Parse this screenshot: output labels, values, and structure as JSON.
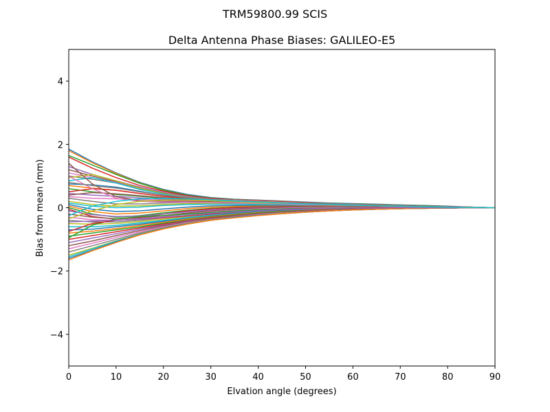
{
  "chart_data": {
    "type": "line",
    "suptitle": "TRM59800.99      SCIS",
    "title": "Delta Antenna Phase Biases: GALILEO-E5",
    "xlabel": "Elvation angle (degrees)",
    "ylabel": "Bias from mean (mm)",
    "xlim": [
      0,
      90
    ],
    "ylim": [
      -5,
      5
    ],
    "xticks": [
      0,
      10,
      20,
      30,
      40,
      50,
      60,
      70,
      80,
      90
    ],
    "yticks": [
      -4,
      -2,
      0,
      2,
      4
    ],
    "ytick_labels": [
      "−4",
      "−2",
      "0",
      "2",
      "4"
    ],
    "grid": false,
    "colors": [
      "#1f77b4",
      "#ff7f0e",
      "#2ca02c",
      "#d62728",
      "#9467bd",
      "#8c564b",
      "#e377c2",
      "#7f7f7f",
      "#bcbd22",
      "#17becf"
    ],
    "x": [
      0,
      5,
      10,
      15,
      20,
      25,
      30,
      35,
      40,
      45,
      50,
      55,
      60,
      65,
      70,
      75,
      80,
      85,
      90
    ],
    "series": [
      {
        "values": [
          1.85,
          1.45,
          1.1,
          0.8,
          0.58,
          0.42,
          0.32,
          0.27,
          0.24,
          0.21,
          0.18,
          0.15,
          0.13,
          0.11,
          0.09,
          0.07,
          0.05,
          0.02,
          0
        ]
      },
      {
        "values": [
          1.8,
          1.42,
          1.08,
          0.78,
          0.56,
          0.4,
          0.3,
          0.26,
          0.23,
          0.2,
          0.17,
          0.14,
          0.12,
          0.1,
          0.08,
          0.06,
          0.04,
          0.02,
          0
        ]
      },
      {
        "values": [
          1.65,
          1.35,
          1.05,
          0.77,
          0.55,
          0.4,
          0.31,
          0.26,
          0.22,
          0.19,
          0.16,
          0.14,
          0.12,
          0.1,
          0.08,
          0.06,
          0.04,
          0.02,
          0
        ]
      },
      {
        "values": [
          1.6,
          1.25,
          0.95,
          0.7,
          0.52,
          0.38,
          0.3,
          0.25,
          0.22,
          0.19,
          0.16,
          0.13,
          0.11,
          0.09,
          0.07,
          0.05,
          0.04,
          0.02,
          0
        ]
      },
      {
        "values": [
          1.3,
          1.05,
          0.85,
          0.65,
          0.48,
          0.36,
          0.28,
          0.24,
          0.21,
          0.18,
          0.15,
          0.13,
          0.11,
          0.09,
          0.07,
          0.05,
          0.03,
          0.01,
          0
        ]
      },
      {
        "values": [
          1.2,
          1.0,
          0.82,
          0.62,
          0.46,
          0.35,
          0.28,
          0.23,
          0.2,
          0.17,
          0.14,
          0.12,
          0.1,
          0.08,
          0.06,
          0.05,
          0.03,
          0.01,
          0
        ]
      },
      {
        "values": [
          1.1,
          0.95,
          0.8,
          0.6,
          0.45,
          0.34,
          0.27,
          0.23,
          0.2,
          0.17,
          0.14,
          0.12,
          0.1,
          0.08,
          0.06,
          0.04,
          0.03,
          0.01,
          0
        ]
      },
      {
        "values": [
          1.0,
          0.9,
          0.78,
          0.6,
          0.44,
          0.33,
          0.26,
          0.22,
          0.19,
          0.16,
          0.14,
          0.12,
          0.1,
          0.08,
          0.06,
          0.04,
          0.03,
          0.01,
          0
        ]
      },
      {
        "values": [
          0.95,
          1.05,
          0.85,
          0.62,
          0.45,
          0.33,
          0.26,
          0.22,
          0.19,
          0.16,
          0.13,
          0.11,
          0.09,
          0.07,
          0.05,
          0.04,
          0.02,
          0.01,
          0
        ]
      },
      {
        "values": [
          0.85,
          0.95,
          0.78,
          0.58,
          0.43,
          0.32,
          0.25,
          0.21,
          0.18,
          0.15,
          0.13,
          0.11,
          0.09,
          0.07,
          0.05,
          0.04,
          0.02,
          0.01,
          0
        ]
      },
      {
        "values": [
          0.75,
          0.72,
          0.65,
          0.52,
          0.4,
          0.31,
          0.25,
          0.21,
          0.18,
          0.15,
          0.13,
          0.11,
          0.09,
          0.07,
          0.05,
          0.04,
          0.02,
          0.01,
          0
        ]
      },
      {
        "values": [
          0.7,
          0.62,
          0.55,
          0.45,
          0.36,
          0.29,
          0.24,
          0.2,
          0.17,
          0.15,
          0.12,
          0.1,
          0.09,
          0.07,
          0.05,
          0.04,
          0.02,
          0.01,
          0
        ]
      },
      {
        "values": [
          0.6,
          0.5,
          0.42,
          0.36,
          0.3,
          0.26,
          0.22,
          0.19,
          0.16,
          0.14,
          0.12,
          0.1,
          0.08,
          0.07,
          0.05,
          0.04,
          0.02,
          0.01,
          0
        ]
      },
      {
        "values": [
          0.5,
          0.6,
          0.55,
          0.45,
          0.36,
          0.29,
          0.24,
          0.2,
          0.17,
          0.15,
          0.12,
          0.1,
          0.08,
          0.07,
          0.05,
          0.03,
          0.02,
          0.01,
          0
        ]
      },
      {
        "values": [
          0.45,
          0.4,
          0.36,
          0.31,
          0.27,
          0.24,
          0.21,
          0.18,
          0.16,
          0.14,
          0.12,
          0.1,
          0.08,
          0.06,
          0.05,
          0.03,
          0.02,
          0.01,
          0
        ]
      },
      {
        "values": [
          0.4,
          0.48,
          0.44,
          0.38,
          0.32,
          0.27,
          0.23,
          0.19,
          0.16,
          0.14,
          0.12,
          0.1,
          0.08,
          0.06,
          0.05,
          0.03,
          0.02,
          0.01,
          0
        ]
      },
      {
        "values": [
          0.35,
          0.3,
          0.28,
          0.26,
          0.24,
          0.22,
          0.2,
          0.17,
          0.15,
          0.13,
          0.11,
          0.09,
          0.08,
          0.06,
          0.05,
          0.03,
          0.02,
          0.01,
          0
        ]
      },
      {
        "values": [
          0.3,
          0.2,
          0.12,
          0.12,
          0.15,
          0.17,
          0.17,
          0.16,
          0.14,
          0.12,
          0.1,
          0.09,
          0.07,
          0.06,
          0.04,
          0.03,
          0.02,
          0.01,
          0
        ]
      },
      {
        "values": [
          0.2,
          0.1,
          0.05,
          0.06,
          0.1,
          0.13,
          0.14,
          0.13,
          0.12,
          0.11,
          0.1,
          0.08,
          0.07,
          0.05,
          0.04,
          0.03,
          0.02,
          0.01,
          0
        ]
      },
      {
        "values": [
          0.15,
          0.05,
          0.0,
          0.02,
          0.07,
          0.1,
          0.11,
          0.11,
          0.1,
          0.09,
          0.08,
          0.07,
          0.06,
          0.05,
          0.04,
          0.03,
          0.02,
          0.01,
          0
        ]
      },
      {
        "values": [
          0.1,
          -0.05,
          -0.12,
          -0.1,
          -0.04,
          0.02,
          0.06,
          0.07,
          0.07,
          0.07,
          0.06,
          0.06,
          0.05,
          0.04,
          0.03,
          0.02,
          0.01,
          0.01,
          0
        ]
      },
      {
        "values": [
          0.05,
          -0.12,
          -0.2,
          -0.17,
          -0.1,
          -0.03,
          0.02,
          0.04,
          0.05,
          0.05,
          0.05,
          0.05,
          0.04,
          0.04,
          0.03,
          0.02,
          0.01,
          0.0,
          0
        ]
      },
      {
        "values": [
          0.0,
          -0.2,
          -0.3,
          -0.25,
          -0.16,
          -0.08,
          -0.02,
          0.01,
          0.03,
          0.04,
          0.04,
          0.04,
          0.04,
          0.03,
          0.03,
          0.02,
          0.01,
          0.0,
          0
        ]
      },
      {
        "values": [
          -0.05,
          -0.28,
          -0.36,
          -0.3,
          -0.2,
          -0.1,
          -0.04,
          0.0,
          0.02,
          0.03,
          0.03,
          0.03,
          0.03,
          0.03,
          0.02,
          0.02,
          0.01,
          0.0,
          0
        ]
      },
      {
        "values": [
          -0.1,
          -0.22,
          -0.28,
          -0.26,
          -0.2,
          -0.13,
          -0.07,
          -0.03,
          0.0,
          0.01,
          0.02,
          0.02,
          0.02,
          0.02,
          0.02,
          0.01,
          0.01,
          0.0,
          0
        ]
      },
      {
        "values": [
          -0.2,
          -0.3,
          -0.35,
          -0.32,
          -0.25,
          -0.17,
          -0.1,
          -0.05,
          -0.02,
          0.0,
          0.01,
          0.02,
          0.02,
          0.02,
          0.01,
          0.01,
          0.0,
          0.0,
          0
        ]
      },
      {
        "values": [
          -0.3,
          -0.38,
          -0.4,
          -0.35,
          -0.28,
          -0.2,
          -0.13,
          -0.08,
          -0.04,
          -0.02,
          0.0,
          0.01,
          0.01,
          0.01,
          0.01,
          0.01,
          0.0,
          0.0,
          0
        ]
      },
      {
        "values": [
          -0.4,
          -0.45,
          -0.45,
          -0.4,
          -0.32,
          -0.24,
          -0.17,
          -0.11,
          -0.07,
          -0.04,
          -0.02,
          -0.01,
          0.0,
          0.0,
          0.0,
          0.0,
          0.0,
          0.0,
          0
        ]
      },
      {
        "values": [
          -0.5,
          -0.52,
          -0.5,
          -0.44,
          -0.36,
          -0.28,
          -0.2,
          -0.14,
          -0.09,
          -0.06,
          -0.04,
          -0.02,
          -0.01,
          -0.01,
          0.0,
          0.0,
          0.0,
          0.0,
          0
        ]
      },
      {
        "values": [
          -0.6,
          -0.6,
          -0.56,
          -0.48,
          -0.4,
          -0.31,
          -0.23,
          -0.17,
          -0.12,
          -0.08,
          -0.05,
          -0.03,
          -0.02,
          -0.01,
          -0.01,
          0.0,
          0.0,
          0.0,
          0
        ]
      },
      {
        "values": [
          -0.7,
          -0.68,
          -0.6,
          -0.52,
          -0.43,
          -0.34,
          -0.26,
          -0.19,
          -0.13,
          -0.09,
          -0.06,
          -0.04,
          -0.03,
          -0.02,
          -0.01,
          -0.01,
          0.0,
          0.0,
          0
        ]
      },
      {
        "values": [
          -0.8,
          -0.74,
          -0.66,
          -0.56,
          -0.46,
          -0.36,
          -0.28,
          -0.21,
          -0.15,
          -0.11,
          -0.08,
          -0.05,
          -0.03,
          -0.02,
          -0.01,
          -0.01,
          0.0,
          0.0,
          0
        ]
      },
      {
        "values": [
          -0.9,
          -0.8,
          -0.7,
          -0.6,
          -0.49,
          -0.39,
          -0.3,
          -0.23,
          -0.17,
          -0.12,
          -0.09,
          -0.06,
          -0.04,
          -0.03,
          -0.02,
          -0.01,
          -0.01,
          0.0,
          0
        ]
      },
      {
        "values": [
          -1.0,
          -0.88,
          -0.76,
          -0.64,
          -0.52,
          -0.41,
          -0.32,
          -0.25,
          -0.19,
          -0.14,
          -0.1,
          -0.07,
          -0.05,
          -0.03,
          -0.02,
          -0.01,
          -0.01,
          0.0,
          0
        ]
      },
      {
        "values": [
          -1.1,
          -0.96,
          -0.82,
          -0.68,
          -0.55,
          -0.43,
          -0.34,
          -0.26,
          -0.2,
          -0.15,
          -0.11,
          -0.08,
          -0.06,
          -0.04,
          -0.03,
          -0.02,
          -0.01,
          0.0,
          0
        ]
      },
      {
        "values": [
          -1.2,
          -1.05,
          -0.88,
          -0.72,
          -0.57,
          -0.45,
          -0.35,
          -0.27,
          -0.21,
          -0.16,
          -0.12,
          -0.09,
          -0.06,
          -0.04,
          -0.03,
          -0.02,
          -0.01,
          0.0,
          0
        ]
      },
      {
        "values": [
          -1.3,
          -1.12,
          -0.94,
          -0.76,
          -0.6,
          -0.47,
          -0.37,
          -0.29,
          -0.22,
          -0.17,
          -0.13,
          -0.09,
          -0.07,
          -0.05,
          -0.03,
          -0.02,
          -0.01,
          0.0,
          0
        ]
      },
      {
        "values": [
          -1.4,
          -1.2,
          -1.0,
          -0.8,
          -0.63,
          -0.49,
          -0.38,
          -0.3,
          -0.23,
          -0.18,
          -0.13,
          -0.1,
          -0.07,
          -0.05,
          -0.03,
          -0.02,
          -0.01,
          0.0,
          0
        ]
      },
      {
        "values": [
          -1.5,
          -1.28,
          -1.05,
          -0.83,
          -0.65,
          -0.5,
          -0.39,
          -0.31,
          -0.24,
          -0.18,
          -0.14,
          -0.1,
          -0.07,
          -0.05,
          -0.03,
          -0.02,
          -0.01,
          0.0,
          0
        ]
      },
      {
        "values": [
          -1.55,
          -1.3,
          -1.06,
          -0.84,
          -0.66,
          -0.51,
          -0.4,
          -0.31,
          -0.24,
          -0.19,
          -0.14,
          -0.1,
          -0.07,
          -0.05,
          -0.03,
          -0.02,
          -0.01,
          0.0,
          0
        ]
      },
      {
        "values": [
          -1.6,
          -1.34,
          -1.08,
          -0.85,
          -0.66,
          -0.51,
          -0.4,
          -0.31,
          -0.24,
          -0.19,
          -0.14,
          -0.1,
          -0.07,
          -0.05,
          -0.03,
          -0.02,
          -0.01,
          0.0,
          0
        ]
      },
      {
        "values": [
          -1.65,
          -1.36,
          -1.1,
          -0.86,
          -0.67,
          -0.52,
          -0.4,
          -0.32,
          -0.25,
          -0.19,
          -0.14,
          -0.1,
          -0.07,
          -0.05,
          -0.03,
          -0.02,
          -0.01,
          0.0,
          0
        ]
      },
      {
        "values": [
          -0.95,
          -0.55,
          -0.35,
          -0.28,
          -0.25,
          -0.2,
          -0.15,
          -0.1,
          -0.06,
          -0.04,
          -0.02,
          -0.01,
          0.0,
          0.0,
          0.0,
          0.0,
          0.0,
          0.0,
          0
        ]
      },
      {
        "values": [
          -0.75,
          -0.5,
          -0.4,
          -0.36,
          -0.32,
          -0.26,
          -0.2,
          -0.14,
          -0.09,
          -0.06,
          -0.03,
          -0.02,
          -0.01,
          0.0,
          0.0,
          0.0,
          0.0,
          0.0,
          0
        ]
      },
      {
        "values": [
          -0.45,
          -0.42,
          -0.4,
          -0.36,
          -0.3,
          -0.24,
          -0.18,
          -0.13,
          -0.09,
          -0.06,
          -0.04,
          -0.02,
          -0.01,
          -0.01,
          0.0,
          0.0,
          0.0,
          0.0,
          0
        ]
      },
      {
        "values": [
          1.4,
          0.75,
          0.35,
          0.22,
          0.2,
          0.2,
          0.19,
          0.17,
          0.15,
          0.13,
          0.11,
          0.09,
          0.08,
          0.06,
          0.05,
          0.03,
          0.02,
          0.01,
          0
        ]
      },
      {
        "values": [
          1.0,
          0.6,
          0.3,
          0.2,
          0.18,
          0.18,
          0.17,
          0.15,
          0.14,
          0.12,
          0.1,
          0.09,
          0.07,
          0.06,
          0.04,
          0.03,
          0.02,
          0.01,
          0
        ]
      },
      {
        "values": [
          0.8,
          0.7,
          0.62,
          0.5,
          0.4,
          0.32,
          0.26,
          0.21,
          0.18,
          0.15,
          0.13,
          0.11,
          0.09,
          0.07,
          0.05,
          0.04,
          0.02,
          0.01,
          0
        ]
      },
      {
        "values": [
          -0.35,
          -0.1,
          0.1,
          0.2,
          0.24,
          0.24,
          0.22,
          0.19,
          0.16,
          0.14,
          0.12,
          0.1,
          0.08,
          0.06,
          0.05,
          0.03,
          0.02,
          0.01,
          0
        ]
      },
      {
        "values": [
          -0.25,
          0.05,
          0.2,
          0.28,
          0.3,
          0.28,
          0.25,
          0.21,
          0.18,
          0.15,
          0.12,
          0.1,
          0.08,
          0.06,
          0.05,
          0.03,
          0.02,
          0.01,
          0
        ]
      }
    ]
  }
}
